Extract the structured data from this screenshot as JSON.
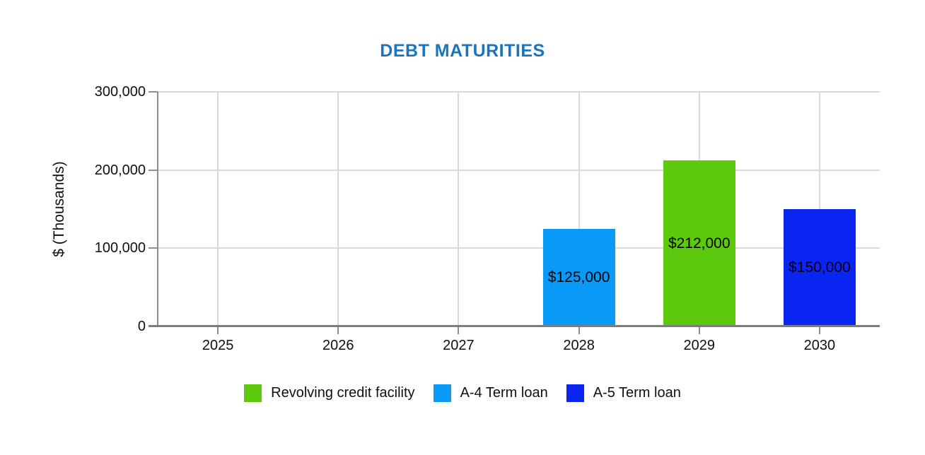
{
  "chart_data": {
    "type": "bar",
    "title": "DEBT MATURITIES",
    "title_color": "#1B74BE",
    "ylabel": "$ (Thousands)",
    "xlabel": "",
    "ylim": [
      0,
      300000
    ],
    "grid": "horizontal and vertical gridlines, light gray",
    "legend_position": "bottom",
    "background_color": "#ffffff",
    "categories": [
      "2025",
      "2026",
      "2027",
      "2028",
      "2029",
      "2030"
    ],
    "yticks": [
      {
        "value": 0,
        "label": "0"
      },
      {
        "value": 100000,
        "label": "100,000"
      },
      {
        "value": 200000,
        "label": "200,000"
      },
      {
        "value": 300000,
        "label": "300,000"
      }
    ],
    "series": [
      {
        "name": "Revolving credit facility",
        "color": "#5DC90E",
        "values": [
          null,
          null,
          null,
          null,
          212000,
          null
        ],
        "data_labels": [
          null,
          null,
          null,
          null,
          "$212,000",
          null
        ]
      },
      {
        "name": "A-4 Term loan",
        "color": "#0999F7",
        "values": [
          null,
          null,
          null,
          125000,
          null,
          null
        ],
        "data_labels": [
          null,
          null,
          null,
          "$125,000",
          null,
          null
        ]
      },
      {
        "name": "A-5 Term loan",
        "color": "#0A25F1",
        "values": [
          null,
          null,
          null,
          null,
          null,
          150000
        ],
        "data_labels": [
          null,
          null,
          null,
          null,
          null,
          "$150,000"
        ]
      }
    ]
  }
}
